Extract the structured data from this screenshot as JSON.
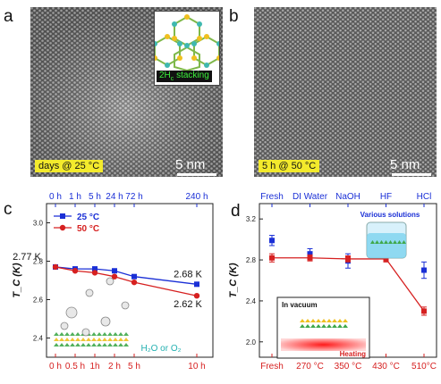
{
  "panels": {
    "a": {
      "letter": "a",
      "caption": "days @ 25 °C",
      "scale": "5 nm",
      "inset_label_base": "2H",
      "inset_label_sub": "c",
      "inset_label_suffix": " stacking"
    },
    "b": {
      "letter": "b",
      "caption": "5 h @ 50 °C",
      "scale": "5 nm"
    },
    "c": {
      "letter": "c",
      "annotation": "H₂O or O₂"
    },
    "d": {
      "letter": "d",
      "solutions_label": "Various solutions",
      "vacuum_label": "In vacuum",
      "heating_label": "Heating"
    }
  },
  "chart_data": [
    {
      "type": "line",
      "ylabel": "T_C (K)",
      "ylim": [
        2.3,
        3.1
      ],
      "yticks": [
        "2.4",
        "2.6",
        "2.8",
        "3.0"
      ],
      "x_top_ticks": [
        "0 h",
        "1 h",
        "5 h",
        "24 h",
        "72 h",
        "240 h"
      ],
      "x_bottom_ticks": [
        "0 h",
        "0.5 h",
        "1h",
        "2 h",
        "5 h",
        "10 h"
      ],
      "series": [
        {
          "name": "25 °C",
          "color": "#1a2fd6",
          "x": [
            0,
            1,
            2,
            3,
            4,
            5
          ],
          "values": [
            2.77,
            2.76,
            2.76,
            2.75,
            2.72,
            2.68
          ]
        },
        {
          "name": "50 °C",
          "color": "#d62020",
          "x": [
            0,
            1,
            2,
            3,
            4,
            5
          ],
          "values": [
            2.77,
            2.75,
            2.74,
            2.72,
            2.69,
            2.62
          ]
        }
      ],
      "legend": "top-left",
      "point_labels": [
        {
          "text": "2.77 K",
          "series": 0,
          "index": 0
        },
        {
          "text": "2.68 K",
          "series": 0,
          "index": 5
        },
        {
          "text": "2.62 K",
          "series": 1,
          "index": 5
        }
      ]
    },
    {
      "type": "line",
      "ylabel": "T_C (K)",
      "ylim": [
        1.85,
        3.35
      ],
      "yticks": [
        "2.0",
        "2.4",
        "2.8",
        "3.2"
      ],
      "x_top_ticks": [
        "Fresh",
        "DI Water",
        "NaOH",
        "HF",
        "HCl"
      ],
      "x_bottom_ticks": [
        "Fresh",
        "270 °C",
        "350 °C",
        "430 °C",
        "510°C"
      ],
      "series": [
        {
          "name": "Various solutions",
          "color": "#1a2fd6",
          "x": [
            0,
            1,
            2,
            3,
            4
          ],
          "values": [
            2.99,
            2.86,
            2.79,
            2.86,
            2.7
          ],
          "errors": [
            0.05,
            0.05,
            0.07,
            0.05,
            0.08
          ],
          "connected": false
        },
        {
          "name": "In vacuum",
          "color": "#d62020",
          "x": [
            0,
            1,
            2,
            3,
            4
          ],
          "values": [
            2.82,
            2.82,
            2.81,
            2.81,
            2.3
          ],
          "errors": [
            0.04,
            0.03,
            0.03,
            0.03,
            0.04
          ],
          "connected": true
        }
      ]
    }
  ]
}
